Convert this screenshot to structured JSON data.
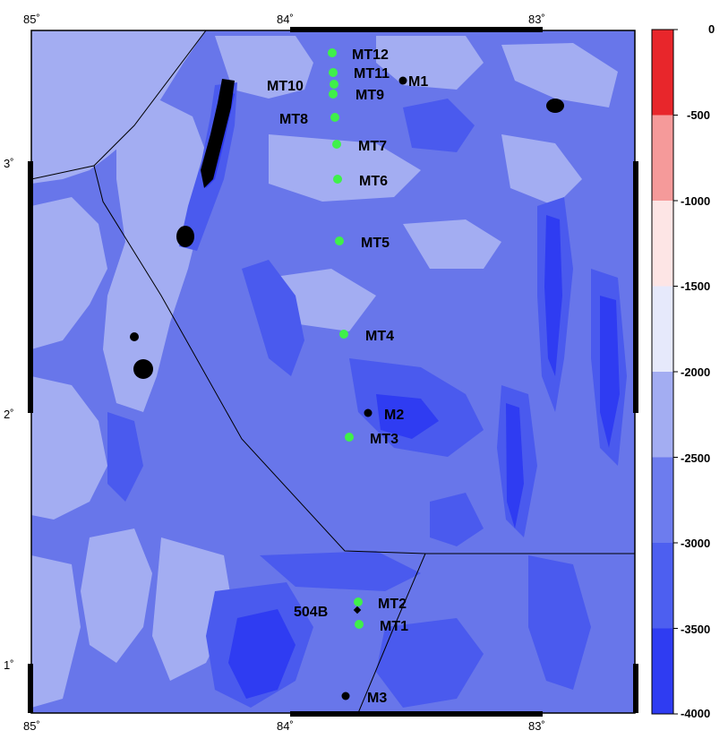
{
  "axes": {
    "top_labels": [
      "85˚",
      "84˚",
      "83˚"
    ],
    "bottom_labels": [
      "85˚",
      "84˚",
      "83˚"
    ],
    "left_labels": [
      "3˚",
      "2˚",
      "1˚"
    ]
  },
  "colorbar": {
    "labels": [
      "0",
      "-500",
      "-1000",
      "-1500",
      "-2000",
      "-2500",
      "-3000",
      "-3500",
      "-4000"
    ],
    "colors": [
      "#e8262b",
      "#ee5a5b",
      "#f59a9a",
      "#fde5e5",
      "#e6e9fb",
      "#a3adf2",
      "#6d7cee",
      "#4d5ff0",
      "#2f3cf2"
    ]
  },
  "colors": {
    "background": "#6876ea",
    "shallow": "#a3adf2",
    "deep": "#4a5aee",
    "deepest": "#2f3cf2",
    "peak": "#000000",
    "site": "#3ff04a"
  },
  "sites": [
    {
      "label": "MT12"
    },
    {
      "label": "MT11"
    },
    {
      "label": "MT10"
    },
    {
      "label": "MT9"
    },
    {
      "label": "MT8"
    },
    {
      "label": "MT7"
    },
    {
      "label": "MT6"
    },
    {
      "label": "MT5"
    },
    {
      "label": "MT4"
    },
    {
      "label": "MT3"
    },
    {
      "label": "MT2"
    },
    {
      "label": "MT1"
    }
  ],
  "other_sites": [
    {
      "label": "M1"
    },
    {
      "label": "M2"
    },
    {
      "label": "M3"
    },
    {
      "label": "504B"
    }
  ]
}
